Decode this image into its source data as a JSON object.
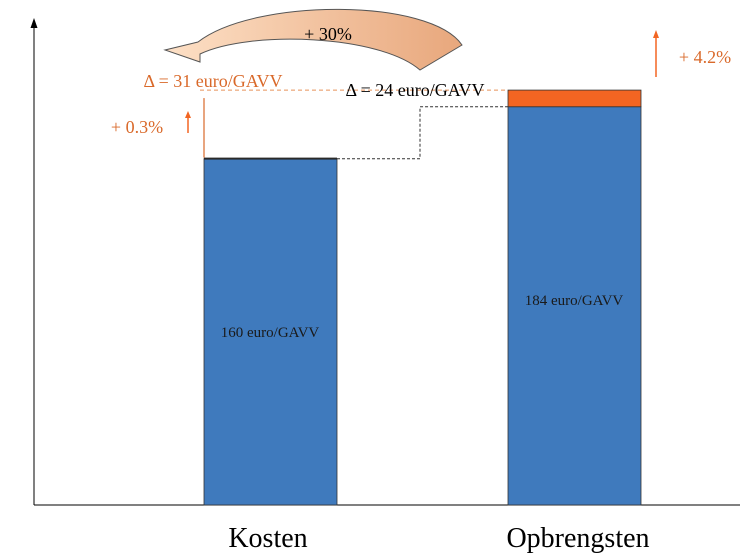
{
  "chart_data": {
    "type": "bar",
    "categories": [
      "Kosten",
      "Opbrengsten"
    ],
    "series": [
      {
        "values": [
          160,
          184
        ]
      },
      {
        "values": [
          0.5,
          7.7
        ]
      }
    ],
    "bar_labels": [
      "160 euro/GAVV",
      "184 euro/GAVV"
    ],
    "ylim": [
      0,
      225
    ],
    "grid": false,
    "annotations": {
      "kosten_increase": "+ 0.3%",
      "opbrengsten_increase": "+ 4.2%",
      "delta_before": "Δ = 24 euro/GAVV",
      "delta_after": "Δ = 31 euro/GAVV",
      "margin_change": "+ 30%"
    },
    "colors": {
      "base": "#3f7abd",
      "increase": "#f26522",
      "annotation": "#d9692a",
      "arrow_fill": "#f6c49a"
    }
  }
}
